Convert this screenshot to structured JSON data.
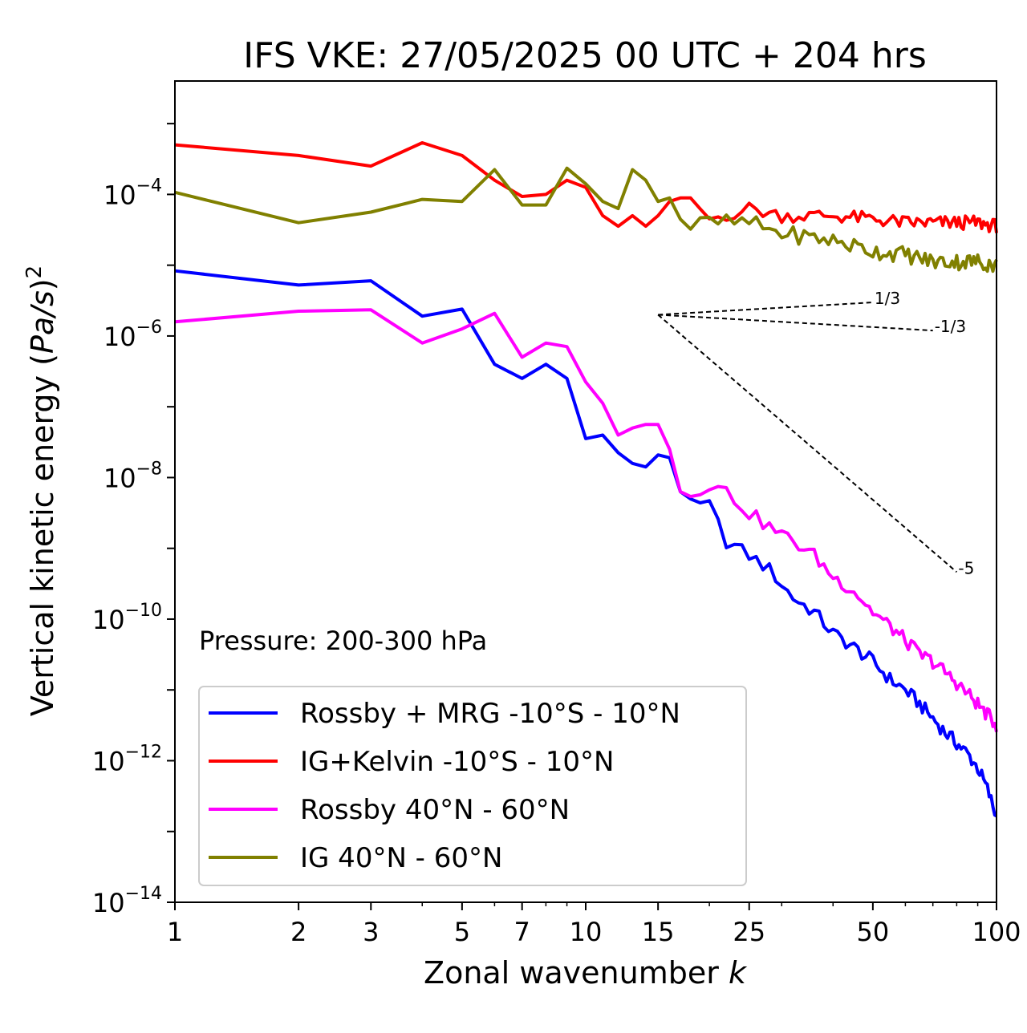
{
  "chart_data": {
    "type": "line",
    "title": "IFS VKE: 27/05/2025 00 UTC + 204 hrs",
    "xlabel_main": "Zonal wavenumber ",
    "xlabel_var": "k",
    "ylabel_main": "Vertical kinetic energy (",
    "ylabel_var": "Pa/s",
    "ylabel_close": ")",
    "ylabel_sup": "2",
    "x_scale": "log",
    "y_scale": "log",
    "xlim": [
      1,
      100
    ],
    "ylim": [
      1e-14,
      0.004
    ],
    "x_ticks": [
      {
        "value": 1,
        "label": "1"
      },
      {
        "value": 2,
        "label": "2"
      },
      {
        "value": 3,
        "label": "3"
      },
      {
        "value": 5,
        "label": "5"
      },
      {
        "value": 7,
        "label": "7"
      },
      {
        "value": 10,
        "label": "10"
      },
      {
        "value": 15,
        "label": "15"
      },
      {
        "value": 25,
        "label": "25"
      },
      {
        "value": 50,
        "label": "50"
      },
      {
        "value": 100,
        "label": "100"
      }
    ],
    "y_ticks": [
      {
        "exp": -4,
        "base": "10",
        "sup": "−4"
      },
      {
        "exp": -6,
        "base": "10",
        "sup": "−6"
      },
      {
        "exp": -8,
        "base": "10",
        "sup": "−8"
      },
      {
        "exp": -10,
        "base": "10",
        "sup": "−10"
      },
      {
        "exp": -12,
        "base": "10",
        "sup": "−12"
      },
      {
        "exp": -14,
        "base": "10",
        "sup": "−14"
      }
    ],
    "annotation": "Pressure: 200-300 hPa",
    "legend_position": "lower-left",
    "series": [
      {
        "name": "Rossby + MRG -10°S - 10°N",
        "color": "#0000ff",
        "anchors": [
          [
            1,
            -5.08
          ],
          [
            2,
            -5.28
          ],
          [
            3,
            -5.22
          ],
          [
            4,
            -5.72
          ],
          [
            5,
            -5.62
          ],
          [
            6,
            -6.4
          ],
          [
            7,
            -6.6
          ],
          [
            8,
            -6.4
          ],
          [
            9,
            -6.6
          ],
          [
            10,
            -7.45
          ],
          [
            11,
            -7.4
          ],
          [
            12,
            -7.65
          ],
          [
            13,
            -7.8
          ],
          [
            14,
            -7.85
          ],
          [
            15,
            -7.68
          ],
          [
            16,
            -7.72
          ],
          [
            17,
            -8.2
          ],
          [
            18,
            -8.4
          ],
          [
            20,
            -8.4
          ],
          [
            22,
            -8.9
          ],
          [
            25,
            -9.1
          ],
          [
            28,
            -9.3
          ],
          [
            32,
            -9.7
          ],
          [
            36,
            -9.9
          ],
          [
            40,
            -10.2
          ],
          [
            45,
            -10.4
          ],
          [
            50,
            -10.6
          ],
          [
            55,
            -10.85
          ],
          [
            60,
            -11.0
          ],
          [
            65,
            -11.2
          ],
          [
            70,
            -11.4
          ],
          [
            75,
            -11.6
          ],
          [
            80,
            -11.75
          ],
          [
            85,
            -11.9
          ],
          [
            90,
            -12.1
          ],
          [
            95,
            -12.4
          ],
          [
            100,
            -12.8
          ]
        ],
        "noise_from": 17,
        "noise_amp": 0.1
      },
      {
        "name": "IG+Kelvin -10°S - 10°N",
        "color": "#ff0000",
        "anchors": [
          [
            1,
            -3.3
          ],
          [
            2,
            -3.45
          ],
          [
            3,
            -3.6
          ],
          [
            4,
            -3.27
          ],
          [
            5,
            -3.45
          ],
          [
            6,
            -3.8
          ],
          [
            7,
            -4.03
          ],
          [
            8,
            -4.0
          ],
          [
            9,
            -3.8
          ],
          [
            10,
            -3.9
          ],
          [
            11,
            -4.3
          ],
          [
            12,
            -4.45
          ],
          [
            13,
            -4.3
          ],
          [
            14,
            -4.45
          ],
          [
            15,
            -4.3
          ],
          [
            16,
            -4.1
          ],
          [
            17,
            -4.05
          ],
          [
            18,
            -4.05
          ],
          [
            20,
            -4.35
          ],
          [
            25,
            -4.2
          ],
          [
            30,
            -4.3
          ],
          [
            40,
            -4.3
          ],
          [
            50,
            -4.35
          ],
          [
            60,
            -4.4
          ],
          [
            70,
            -4.4
          ],
          [
            80,
            -4.4
          ],
          [
            90,
            -4.4
          ],
          [
            100,
            -4.45
          ]
        ],
        "noise_from": 18,
        "noise_amp": 0.1
      },
      {
        "name": "Rossby 40°N - 60°N",
        "color": "#ff00ff",
        "anchors": [
          [
            1,
            -5.8
          ],
          [
            2,
            -5.65
          ],
          [
            3,
            -5.63
          ],
          [
            4,
            -6.1
          ],
          [
            5,
            -5.9
          ],
          [
            6,
            -5.68
          ],
          [
            7,
            -6.3
          ],
          [
            8,
            -6.1
          ],
          [
            9,
            -6.15
          ],
          [
            10,
            -6.65
          ],
          [
            11,
            -6.95
          ],
          [
            12,
            -7.4
          ],
          [
            13,
            -7.3
          ],
          [
            14,
            -7.25
          ],
          [
            15,
            -7.25
          ],
          [
            16,
            -7.6
          ],
          [
            17,
            -8.2
          ],
          [
            18,
            -8.2
          ],
          [
            20,
            -8.1
          ],
          [
            22,
            -8.2
          ],
          [
            25,
            -8.5
          ],
          [
            28,
            -8.7
          ],
          [
            32,
            -8.9
          ],
          [
            36,
            -9.1
          ],
          [
            40,
            -9.4
          ],
          [
            45,
            -9.6
          ],
          [
            50,
            -9.9
          ],
          [
            55,
            -10.1
          ],
          [
            60,
            -10.3
          ],
          [
            65,
            -10.5
          ],
          [
            70,
            -10.6
          ],
          [
            75,
            -10.75
          ],
          [
            80,
            -10.9
          ],
          [
            85,
            -11.05
          ],
          [
            90,
            -11.2
          ],
          [
            95,
            -11.35
          ],
          [
            100,
            -11.5
          ]
        ],
        "noise_from": 17,
        "noise_amp": 0.1
      },
      {
        "name": "IG 40°N - 60°N",
        "color": "#808000",
        "anchors": [
          [
            1,
            -3.97
          ],
          [
            2,
            -4.4
          ],
          [
            3,
            -4.25
          ],
          [
            4,
            -4.07
          ],
          [
            5,
            -4.1
          ],
          [
            6,
            -3.65
          ],
          [
            7,
            -4.15
          ],
          [
            8,
            -4.15
          ],
          [
            9,
            -3.63
          ],
          [
            10,
            -3.85
          ],
          [
            11,
            -4.1
          ],
          [
            12,
            -4.2
          ],
          [
            13,
            -3.65
          ],
          [
            14,
            -3.8
          ],
          [
            15,
            -4.1
          ],
          [
            16,
            -4.05
          ],
          [
            17,
            -4.35
          ],
          [
            18,
            -4.45
          ],
          [
            20,
            -4.4
          ],
          [
            25,
            -4.4
          ],
          [
            30,
            -4.55
          ],
          [
            40,
            -4.65
          ],
          [
            50,
            -4.8
          ],
          [
            60,
            -4.85
          ],
          [
            70,
            -4.95
          ],
          [
            80,
            -4.95
          ],
          [
            90,
            -4.95
          ],
          [
            100,
            -5.0
          ]
        ],
        "noise_from": 17,
        "noise_amp": 0.12
      }
    ],
    "slope_guides": [
      {
        "label": "1/3",
        "slope": 0.3333,
        "x_from": 15,
        "x_to": 50,
        "y0_exp": -5.7
      },
      {
        "label": "-1/3",
        "slope": -0.3333,
        "x_from": 15,
        "x_to": 70,
        "y0_exp": -5.7
      },
      {
        "label": "-5",
        "slope": -5,
        "x_from": 15,
        "x_to": 80,
        "y0_exp": -5.7
      }
    ]
  }
}
